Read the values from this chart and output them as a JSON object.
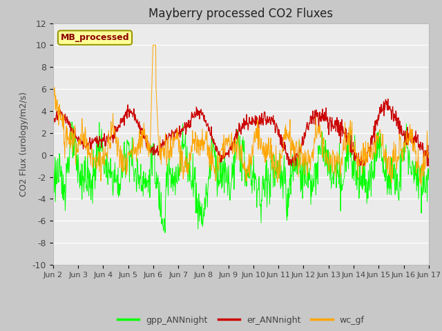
{
  "title": "Mayberry processed CO2 Fluxes",
  "ylabel": "CO2 Flux (urology/m2/s)",
  "ylim": [
    -10,
    12
  ],
  "yticks": [
    -10,
    -8,
    -6,
    -4,
    -2,
    0,
    2,
    4,
    6,
    8,
    10,
    12
  ],
  "xtick_labels": [
    "Jun 2",
    "Jun 3",
    "Jun 4",
    "Jun 5",
    "Jun 6",
    "Jun 7",
    "Jun 8",
    "Jun 9",
    "Jun 10",
    "Jun 11",
    "Jun 12",
    "Jun 13",
    "Jun 14",
    "Jun 15",
    "Jun 16",
    "Jun 17"
  ],
  "legend_label": "MB_processed",
  "line_labels": [
    "gpp_ANNnight",
    "er_ANNnight",
    "wc_gf"
  ],
  "line_colors": [
    "#00FF00",
    "#CC0000",
    "#FFA500"
  ],
  "fig_bg": "#C8C8C8",
  "plot_bg": "#EBEBEB",
  "grid_color": "#FFFFFF",
  "title_fontsize": 12,
  "tick_fontsize": 8,
  "ylabel_fontsize": 9,
  "legend_fontsize": 9,
  "n_points": 960
}
